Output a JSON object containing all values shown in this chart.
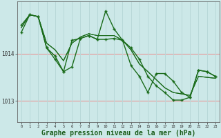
{
  "background_color": "#cce8e8",
  "grid_color_h": "#e89898",
  "grid_color_v": "#b8d8d8",
  "line_color": "#1a6b1a",
  "marker": "+",
  "xlabel": "Graphe pression niveau de la mer (hPa)",
  "xlabel_fontsize": 7,
  "ytick_labels": [
    "1013",
    "1014"
  ],
  "ytick_values": [
    1013.0,
    1014.0
  ],
  "ylim": [
    1012.55,
    1015.1
  ],
  "xlim": [
    -0.5,
    23.5
  ],
  "xticks": [
    0,
    1,
    2,
    3,
    4,
    5,
    6,
    7,
    8,
    9,
    10,
    11,
    12,
    13,
    14,
    15,
    16,
    17,
    18,
    19,
    20,
    21,
    22,
    23
  ],
  "series": [
    {
      "y": [
        1014.6,
        1014.82,
        1014.78,
        1014.12,
        1013.88,
        1013.62,
        1014.28,
        1014.32,
        1014.38,
        1014.3,
        1014.9,
        1014.52,
        1014.28,
        1013.75,
        1013.52,
        1013.18,
        1013.58,
        1013.58,
        1013.42,
        1013.18,
        1013.08,
        1013.65,
        1013.62,
        1013.52
      ],
      "marker": true,
      "linewidth": 1.0
    },
    {
      "y": [
        1014.45,
        1014.82,
        1014.78,
        1014.12,
        1013.95,
        1013.62,
        1013.72,
        1014.32,
        1014.38,
        1014.3,
        1014.3,
        1014.32,
        1014.28,
        1014.12,
        1013.88,
        1013.52,
        1013.32,
        1013.18,
        1013.02,
        1013.02,
        1013.08,
        1013.65,
        1013.62,
        1013.52
      ],
      "marker": true,
      "linewidth": 1.0
    },
    {
      "y": [
        1014.55,
        1014.82,
        1014.78,
        1014.22,
        1014.08,
        1013.85,
        1014.22,
        1014.35,
        1014.42,
        1014.38,
        1014.38,
        1014.38,
        1014.28,
        1014.08,
        1013.78,
        1013.62,
        1013.45,
        1013.28,
        1013.18,
        1013.15,
        1013.12,
        1013.52,
        1013.5,
        1013.48
      ],
      "marker": false,
      "linewidth": 0.8
    },
    {
      "y": [
        1014.55,
        1014.82,
        1014.78,
        1014.22,
        1014.08,
        1013.85,
        1014.22,
        1014.35,
        1014.42,
        1014.38,
        1014.38,
        1014.38,
        1014.28,
        1014.08,
        1013.78,
        1013.62,
        1013.45,
        1013.28,
        1013.18,
        1013.15,
        1013.12,
        1013.52,
        1013.5,
        1013.48
      ],
      "marker": false,
      "linewidth": 0.8
    }
  ]
}
